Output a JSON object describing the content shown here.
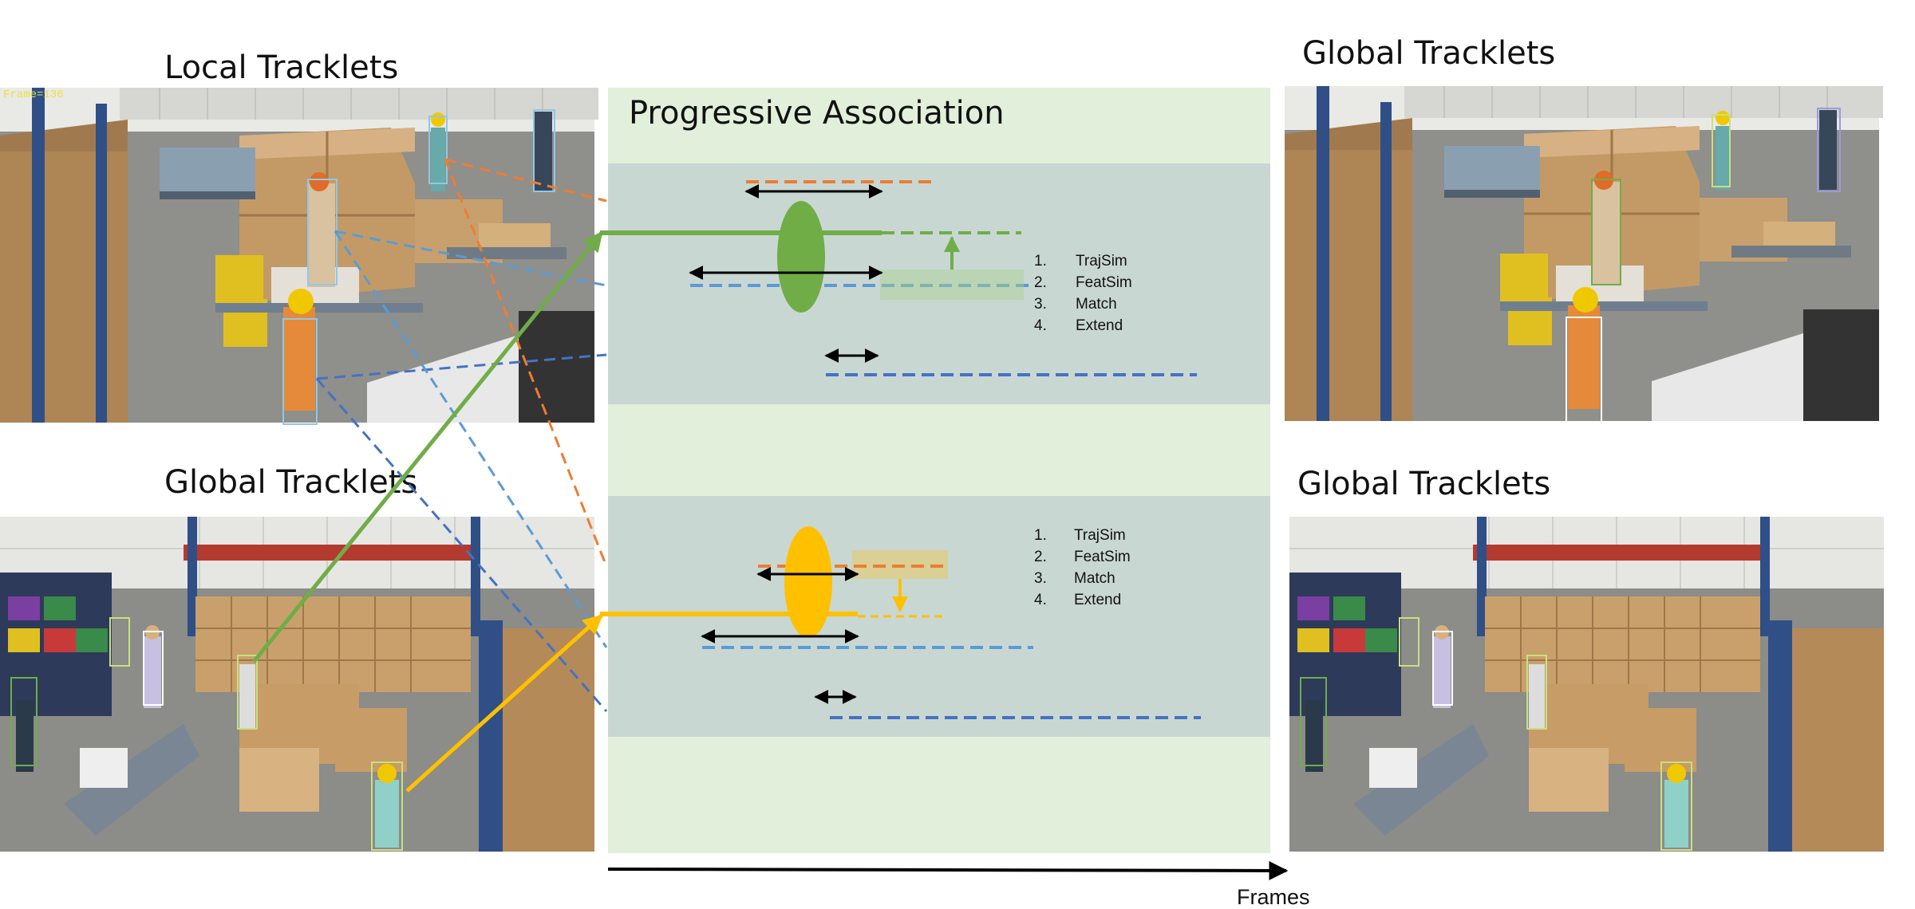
{
  "titles": {
    "local_top_left": "Local Tracklets",
    "global_bottom_left": "Global Tracklets",
    "global_top_right": "Global Tracklets",
    "global_bottom_right": "Global Tracklets",
    "center": "Progressive Association"
  },
  "panels": {
    "top_left": {
      "overlay_text": "Frame=136"
    }
  },
  "steps_top": [
    "TrajSim",
    "FeatSim",
    "Match",
    "Extend"
  ],
  "steps_bottom": [
    "TrajSim",
    "FeatSim",
    "Match",
    "Extend"
  ],
  "step_numbers": [
    "1.",
    "2.",
    "3.",
    "4."
  ],
  "axis": {
    "label": "Frames"
  },
  "colors": {
    "orange": "#ED7D31",
    "light_blue": "#5B9BD5",
    "dark_blue": "#4472C4",
    "green": "#70AD47",
    "yellow": "#FFC000",
    "panel_bg": "#E2EFDA",
    "band_bg": "#C9D7D3"
  }
}
